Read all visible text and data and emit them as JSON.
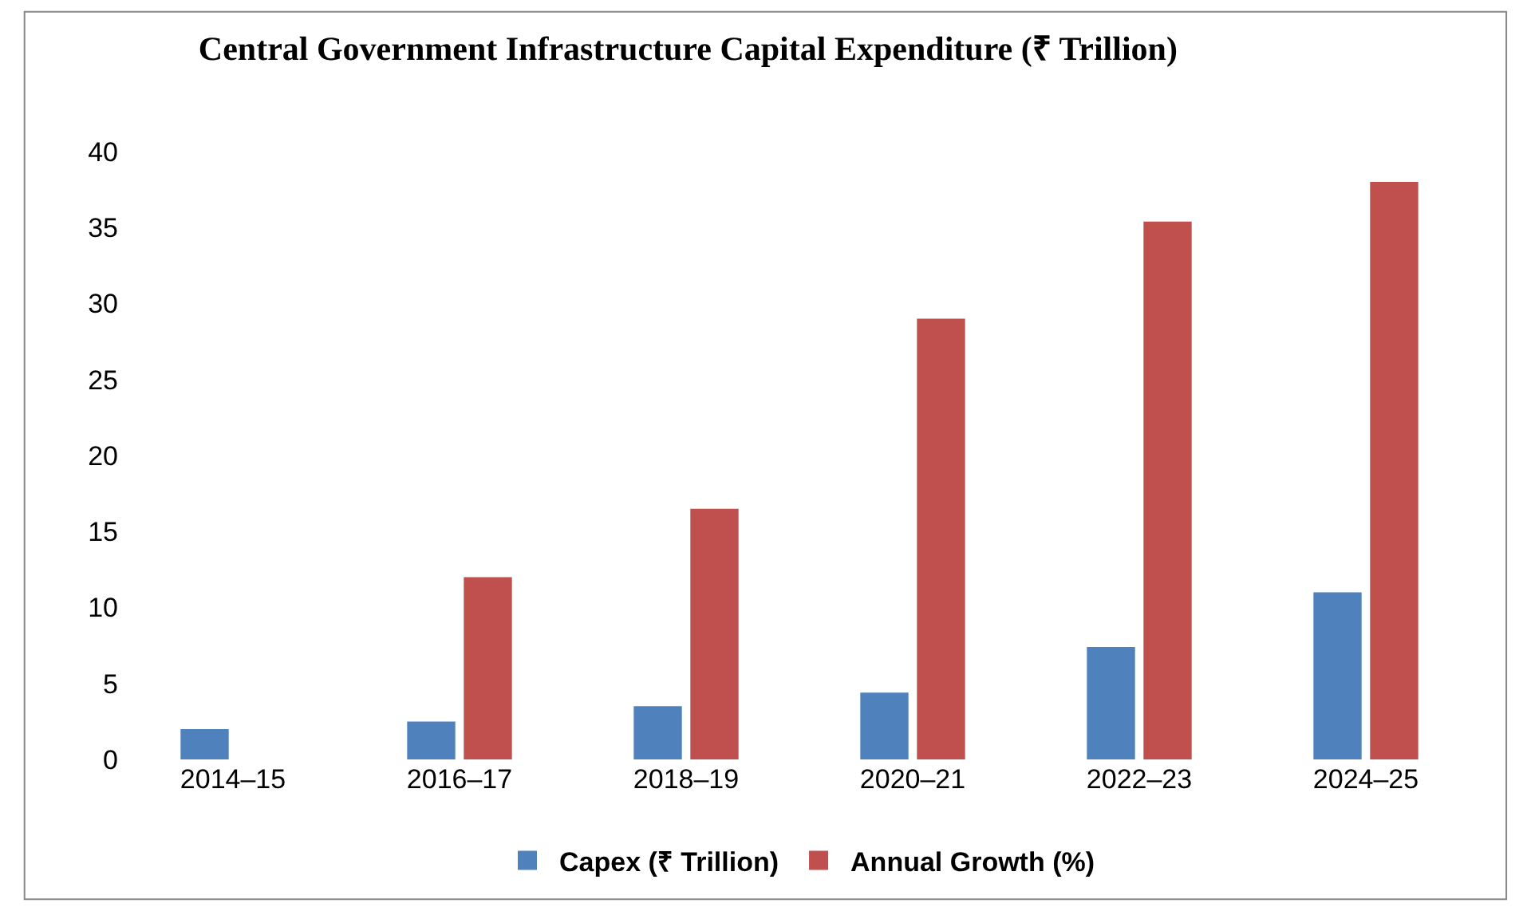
{
  "chart_data": {
    "type": "bar",
    "title": "Central Government Infrastructure Capital Expenditure (₹ Trillion)",
    "categories": [
      "2014–15",
      "2016–17",
      "2018–19",
      "2020–21",
      "2022–23",
      "2024–25"
    ],
    "series": [
      {
        "name": "Capex (₹ Trillion)",
        "color": "#4f81bd",
        "values": [
          2.0,
          2.5,
          3.5,
          4.4,
          7.4,
          11.0
        ]
      },
      {
        "name": "Annual Growth (%)",
        "color": "#c0504d",
        "values": [
          null,
          12,
          16.5,
          29,
          35.4,
          38
        ]
      }
    ],
    "ylim": [
      0,
      40
    ],
    "yticks": [
      0,
      5,
      10,
      15,
      20,
      25,
      30,
      35,
      40
    ],
    "grid": false,
    "legend": "bottom"
  }
}
